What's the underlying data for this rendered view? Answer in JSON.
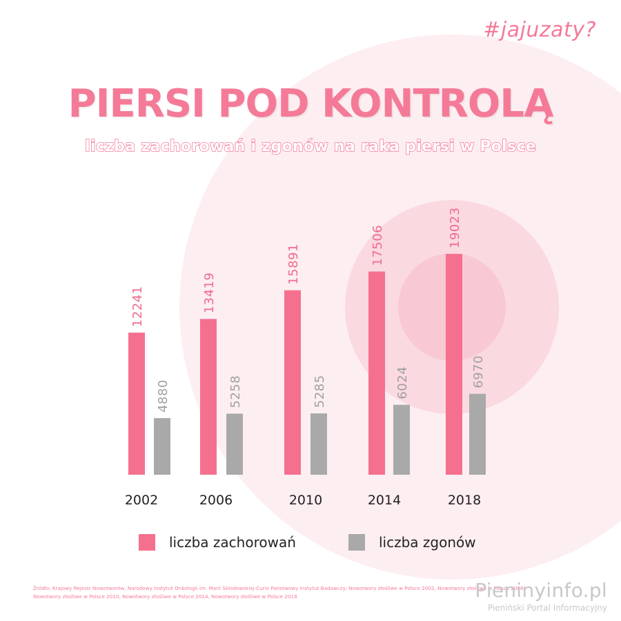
{
  "header": {
    "hashtag": "#jajuzaty?",
    "title": "PIERSI POD KONTROLĄ",
    "subtitle": "liczba zachorowań i zgonów na raka piersi w Polsce"
  },
  "colors": {
    "accent": "#f47a98",
    "bar_primary": "#f5708f",
    "bar_secondary": "#a9a9a9"
  },
  "chart_data": {
    "type": "bar",
    "categories": [
      "2002",
      "2006",
      "2010",
      "2014",
      "2018"
    ],
    "series": [
      {
        "name": "liczba zachorowań",
        "values": [
          12241,
          13419,
          15891,
          17506,
          19023
        ]
      },
      {
        "name": "liczba zgonów",
        "values": [
          4880,
          5258,
          5285,
          6024,
          6970
        ]
      }
    ],
    "ylim": [
      0,
      19023
    ],
    "grid": false,
    "legend": "bottom",
    "data_labels": true
  },
  "legend": {
    "items": [
      {
        "label": "liczba zachorowań"
      },
      {
        "label": "liczba zgonów"
      }
    ]
  },
  "footer": {
    "source_line1": "Źródło: Krajowy Rejestr Nowotworów, Narodowy Instytut Onkologii im. Marii Skłodowskiej-Curie Państwowy Instytut Badawczy: Nowotwory złośliwe w Polsce 2002, Nowotwory złośliwe w Polsce 2006,",
    "source_line2": "Nowotwory złośliwe w Polsce 2010, Nowotwory złośliwe w Polsce 2014, Nowotwory złośliwe w Polsce 2018",
    "brand_name": "Pieninyinfo.pl",
    "brand_tagline": "Pieniński Portal Informacyjny"
  }
}
